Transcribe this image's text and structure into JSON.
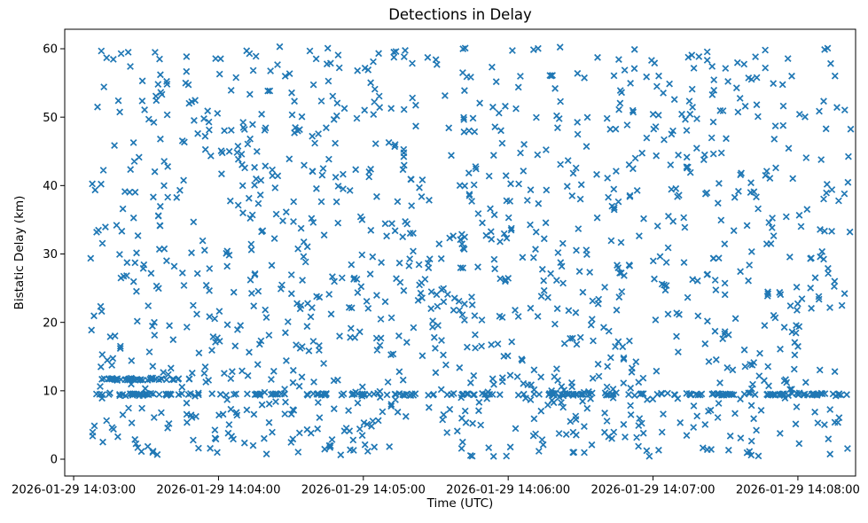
{
  "chart_data": {
    "type": "scatter",
    "title": "Detections in Delay",
    "xlabel": "Time (UTC)",
    "ylabel": "Bistatic Delay (km)",
    "grid": false,
    "legend": false,
    "marker": {
      "symbol": "x",
      "color": "#1f77b4",
      "half_size_px": 3.3,
      "stroke_px": 1.7
    },
    "frame_color": "#000000",
    "x_axis": {
      "epoch_label": "2026-01-29 14:03:00",
      "tick_seconds": [
        0,
        60,
        120,
        180,
        240,
        300
      ],
      "tick_labels": [
        "2026-01-29 14:03:00",
        "2026-01-29 14:04:00",
        "2026-01-29 14:05:00",
        "2026-01-29 14:06:00",
        "2026-01-29 14:07:00",
        "2026-01-29 14:08:00"
      ],
      "range_seconds": [
        -3.7,
        323.9
      ]
    },
    "y_axis": {
      "ticks": [
        0,
        10,
        20,
        30,
        40,
        50,
        60
      ],
      "tick_labels": [
        "0",
        "10",
        "20",
        "30",
        "40",
        "50",
        "60"
      ],
      "range": [
        -2.46,
        62.85
      ]
    },
    "n_points_visible_estimate": 1530,
    "points_spec": {
      "comment": "Detections scatter: quasi-uniform random cloud of x markers over the full time/delay window, plus persistent constant-delay band near 9.5 km across the whole interval and a short dense band near 11.7 km from ~14:03:11 to ~14:03:48. t = seconds after 2026-01-29 14:03:00.",
      "seed": 1337,
      "uniform_background": {
        "count": 1250,
        "t_range": [
          7,
          322
        ],
        "delay_range": [
          0.4,
          60.3
        ]
      },
      "constant_delay_bands": [
        {
          "delay_km": 9.5,
          "jitter_km": 0.16,
          "t_range": [
            8,
            322
          ],
          "count": 130
        },
        {
          "delay_km": 9.5,
          "jitter_km": 0.13,
          "dense_segments_t": [
            [
              10,
              48
            ],
            [
              74,
              106
            ],
            [
              114,
              168
            ],
            [
              196,
              215
            ],
            [
              255,
              276
            ],
            [
              288,
              310
            ]
          ],
          "count_per_segment": 18
        },
        {
          "delay_km": 11.7,
          "jitter_km": 0.14,
          "t_range": [
            11,
            48
          ],
          "count": 40
        }
      ]
    }
  }
}
